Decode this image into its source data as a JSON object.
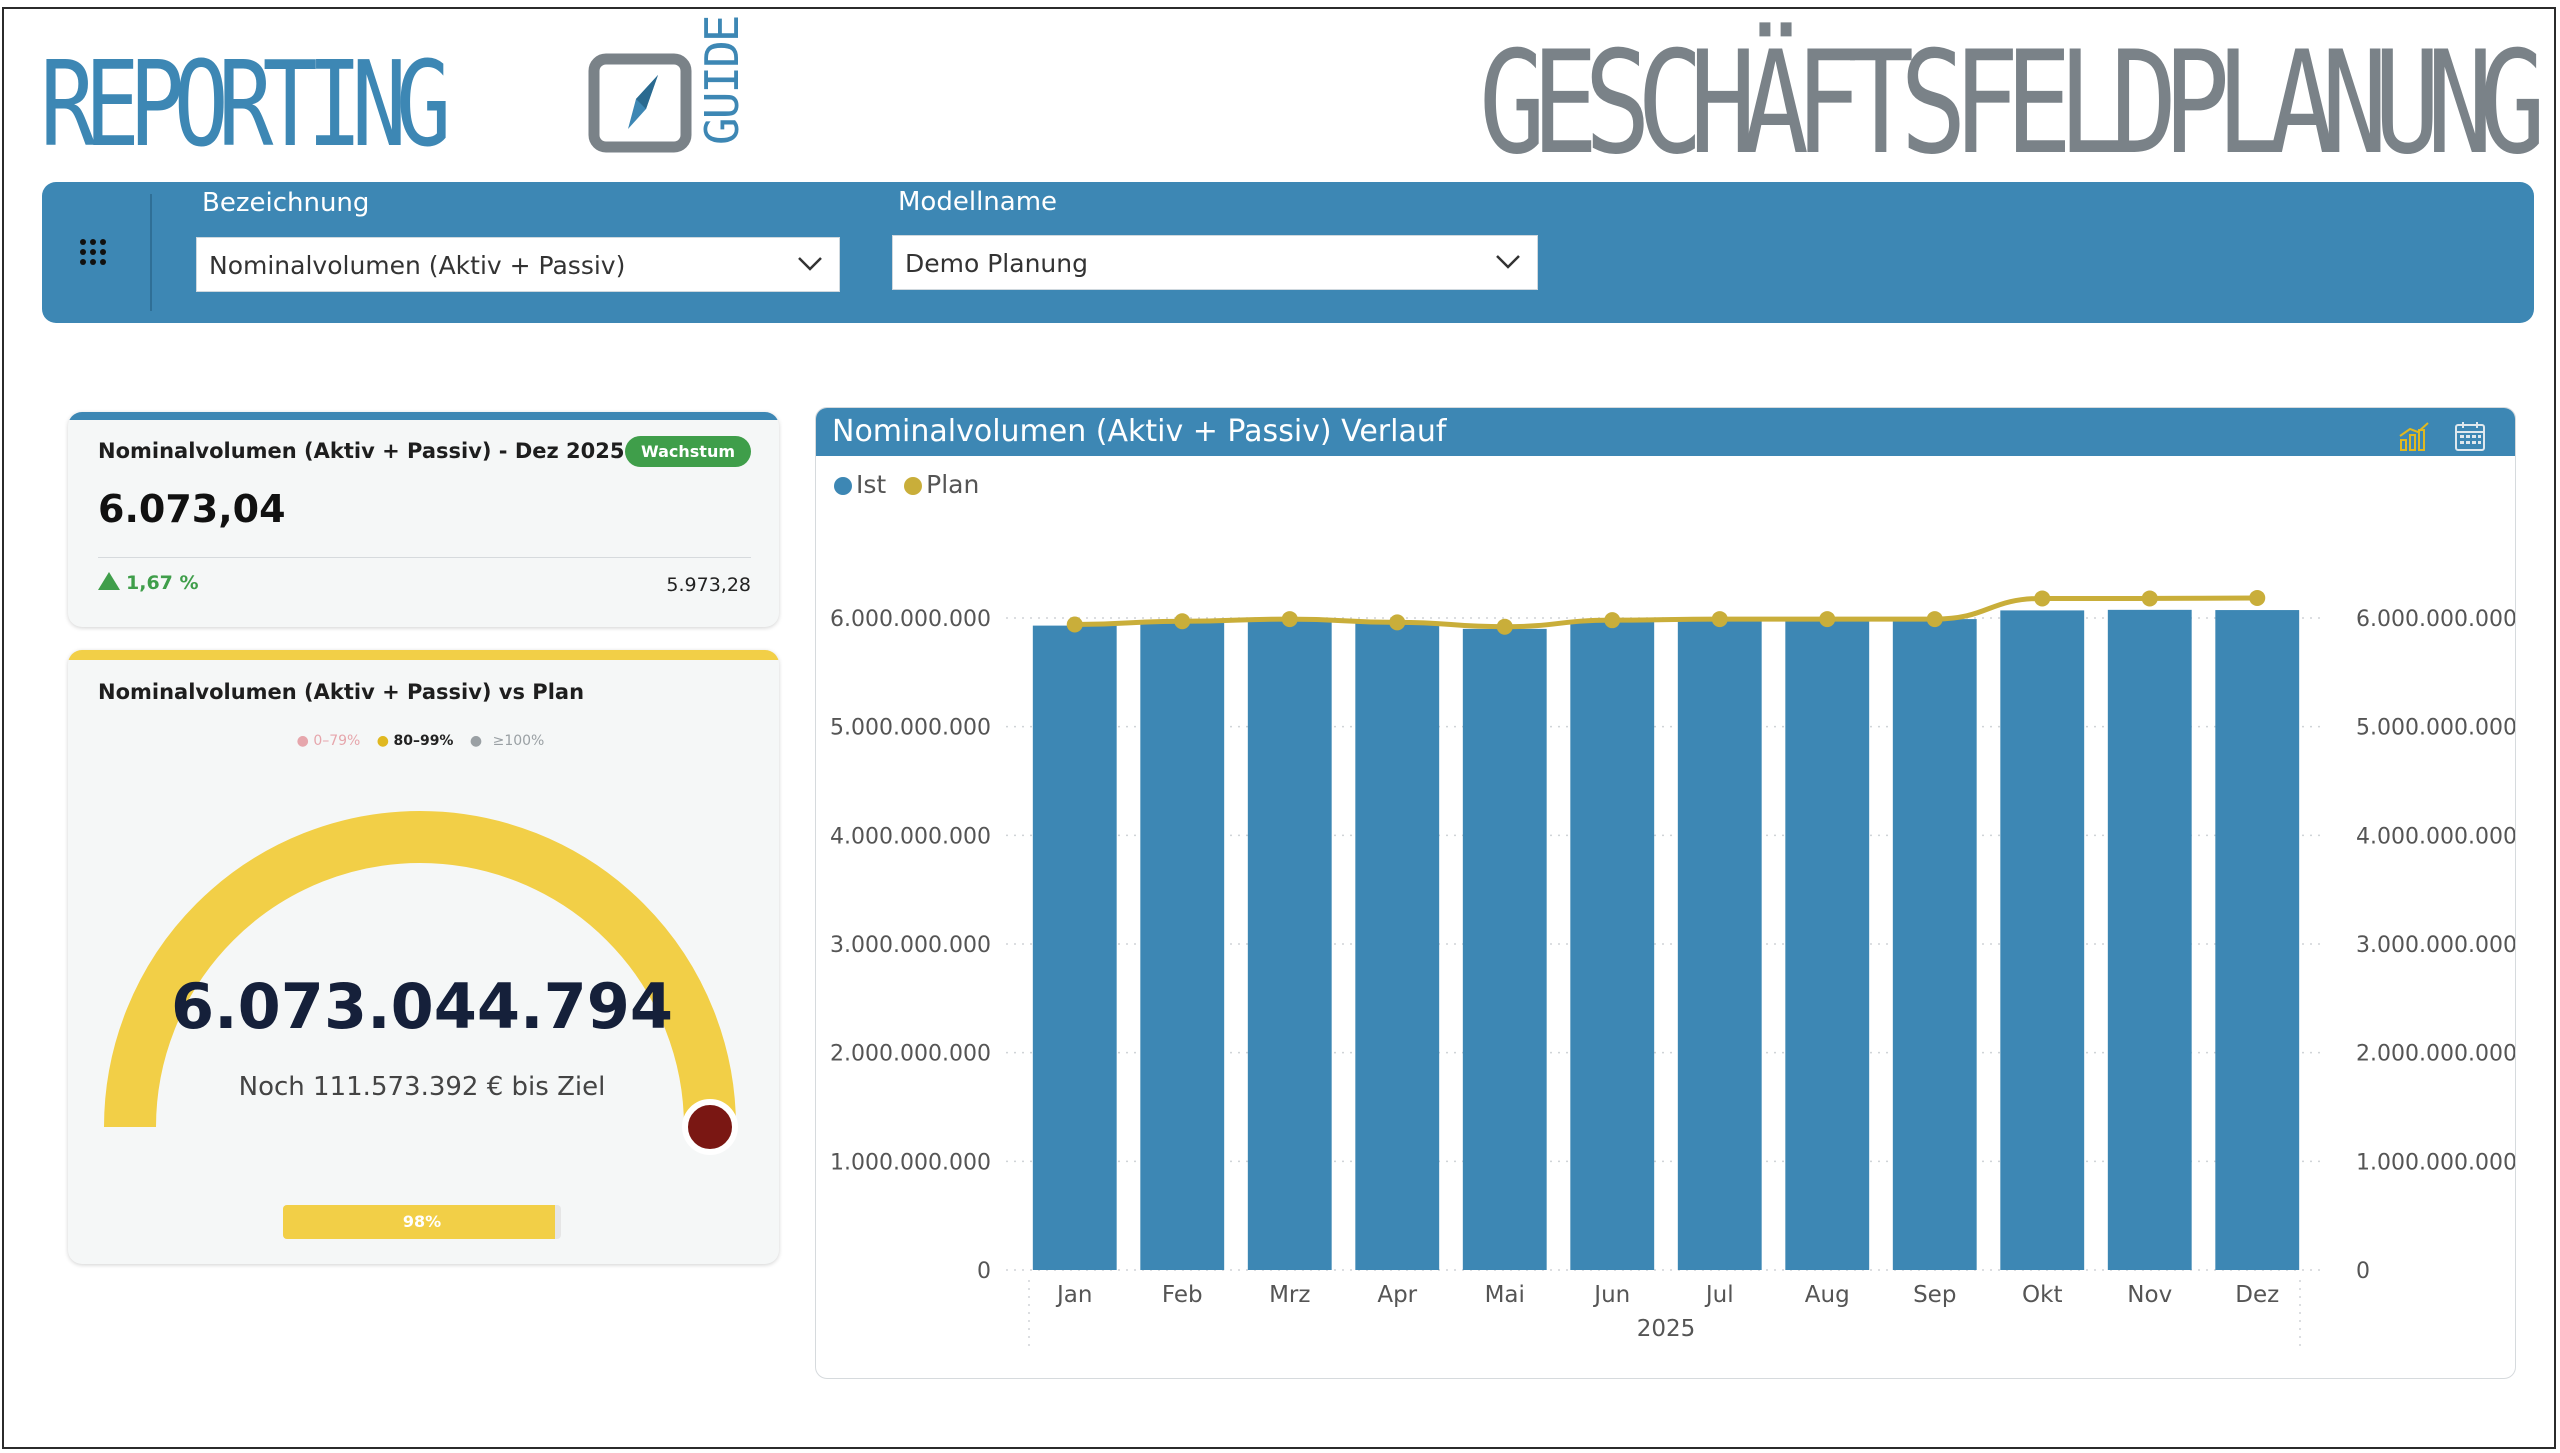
{
  "logo": {
    "word": "REPORTING",
    "sub": "GUIDE"
  },
  "page_title": "GESCHÄFTSFELDPLANUNG",
  "filters": {
    "bezeichnung": {
      "label": "Bezeichnung",
      "value": "Nominalvolumen (Aktiv + Passiv)"
    },
    "modellname": {
      "label": "Modellname",
      "value": "Demo Planung"
    }
  },
  "kpi": {
    "title": "Nominalvolumen (Aktiv + Passiv) - Dez 2025",
    "badge": "Wachstum",
    "value": "6.073,04",
    "delta": "1,67 %",
    "previous": "5.973,28"
  },
  "gauge": {
    "title": "Nominalvolumen (Aktiv + Passiv) vs Plan",
    "legend": [
      "0–79%",
      "80–99%",
      "≥100%"
    ],
    "value": "6.073.044.794",
    "subtitle": "Noch 111.573.392 € bis Ziel",
    "progress_label": "98%",
    "progress": 0.98
  },
  "colors": {
    "accent": "#3d87b4",
    "plan": "#c9ae3a",
    "gauge": "#f2cf47",
    "positive": "#3f9e4a",
    "marker": "#7a1713"
  },
  "chart": {
    "title": "Nominalvolumen (Aktiv + Passiv) Verlauf"
  },
  "chart_data": {
    "type": "bar",
    "categories": [
      "Jan",
      "Feb",
      "Mrz",
      "Apr",
      "Mai",
      "Jun",
      "Jul",
      "Aug",
      "Sep",
      "Okt",
      "Nov",
      "Dez"
    ],
    "xgroup": "2025",
    "series": [
      {
        "name": "Ist",
        "type": "bar",
        "values": [
          5930000000,
          5960000000,
          5980000000,
          5950000000,
          5900000000,
          5980000000,
          5990000000,
          5990000000,
          5990000000,
          6070000000,
          6075000000,
          6073044794
        ]
      },
      {
        "name": "Plan",
        "type": "line",
        "values": [
          5940000000,
          5970000000,
          5990000000,
          5960000000,
          5920000000,
          5980000000,
          5990000000,
          5990000000,
          5990000000,
          6180000000,
          6180000000,
          6184618186
        ]
      }
    ],
    "ylim": [
      0,
      6000000000
    ],
    "yticks": [
      "0",
      "1.000.000.000",
      "2.000.000.000",
      "3.000.000.000",
      "4.000.000.000",
      "5.000.000.000",
      "6.000.000.000"
    ],
    "y2ticks": [
      "0",
      "1.000.000.000",
      "2.000.000.000",
      "3.000.000.000",
      "4.000.000.000",
      "5.000.000.000",
      "6.000.000.000"
    ],
    "grid": true,
    "legend_position": "top-left"
  }
}
